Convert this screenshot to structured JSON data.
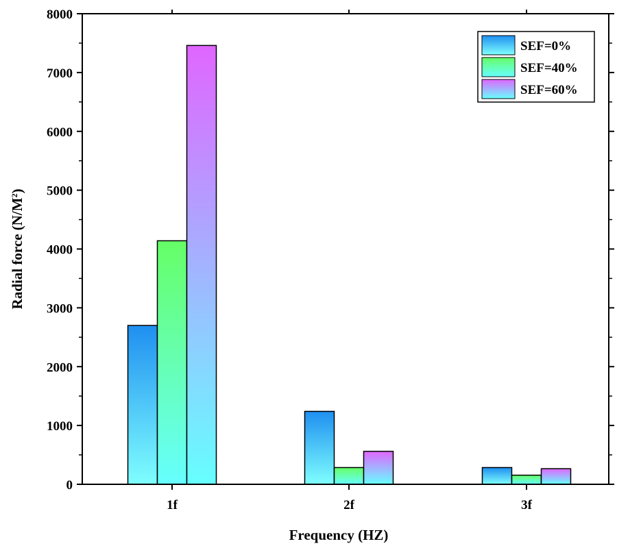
{
  "chart_data": {
    "type": "bar",
    "categories": [
      "1f",
      "2f",
      "3f"
    ],
    "series": [
      {
        "name": "SEF=0%",
        "values": [
          2700,
          1240,
          285
        ],
        "color_top": "#1f8ff0",
        "color_bottom": "#7fffff"
      },
      {
        "name": "SEF=40%",
        "values": [
          4140,
          285,
          155
        ],
        "color_top": "#66ff66",
        "color_bottom": "#66ffff"
      },
      {
        "name": "SEF=60%",
        "values": [
          7460,
          560,
          265
        ],
        "color_top": "#e066ff",
        "color_bottom": "#66ffff"
      }
    ],
    "xlabel": "Frequency (HZ)",
    "ylabel_main": "Radial force (N/M",
    "ylabel_sup": "2",
    "ylabel_end": ")",
    "ylim": [
      0,
      8000
    ],
    "yticks": [
      0,
      1000,
      2000,
      3000,
      4000,
      5000,
      6000,
      7000,
      8000
    ],
    "legend_position": "top-right",
    "grid": false
  }
}
